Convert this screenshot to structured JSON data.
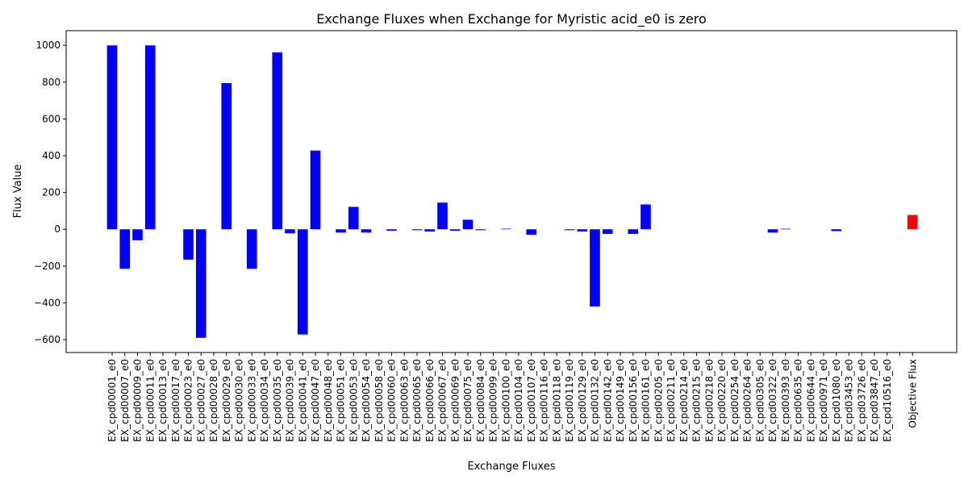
{
  "chart_data": {
    "type": "bar",
    "title": "Exchange Fluxes when Exchange for Myristic acid_e0 is zero",
    "xlabel": "Exchange Fluxes",
    "ylabel": "Flux Value",
    "ylim": [
      -670,
      1080
    ],
    "yticks": [
      -600,
      -400,
      -200,
      0,
      200,
      400,
      600,
      800,
      1000
    ],
    "grid": false,
    "colors": {
      "exchange": "#0000ff",
      "objective": "#ff0000"
    },
    "categories": [
      "EX_cpd00001_e0",
      "EX_cpd00007_e0",
      "EX_cpd00009_e0",
      "EX_cpd00011_e0",
      "EX_cpd00013_e0",
      "EX_cpd00017_e0",
      "EX_cpd00023_e0",
      "EX_cpd00027_e0",
      "EX_cpd00028_e0",
      "EX_cpd00029_e0",
      "EX_cpd00030_e0",
      "EX_cpd00033_e0",
      "EX_cpd00034_e0",
      "EX_cpd00035_e0",
      "EX_cpd00039_e0",
      "EX_cpd00041_e0",
      "EX_cpd00047_e0",
      "EX_cpd00048_e0",
      "EX_cpd00051_e0",
      "EX_cpd00053_e0",
      "EX_cpd00054_e0",
      "EX_cpd00058_e0",
      "EX_cpd00060_e0",
      "EX_cpd00063_e0",
      "EX_cpd00065_e0",
      "EX_cpd00066_e0",
      "EX_cpd00067_e0",
      "EX_cpd00069_e0",
      "EX_cpd00075_e0",
      "EX_cpd00084_e0",
      "EX_cpd00099_e0",
      "EX_cpd00100_e0",
      "EX_cpd00104_e0",
      "EX_cpd00107_e0",
      "EX_cpd00116_e0",
      "EX_cpd00118_e0",
      "EX_cpd00119_e0",
      "EX_cpd00129_e0",
      "EX_cpd00132_e0",
      "EX_cpd00142_e0",
      "EX_cpd00149_e0",
      "EX_cpd00156_e0",
      "EX_cpd00161_e0",
      "EX_cpd00205_e0",
      "EX_cpd00211_e0",
      "EX_cpd00214_e0",
      "EX_cpd00215_e0",
      "EX_cpd00218_e0",
      "EX_cpd00220_e0",
      "EX_cpd00254_e0",
      "EX_cpd00264_e0",
      "EX_cpd00305_e0",
      "EX_cpd00322_e0",
      "EX_cpd00393_e0",
      "EX_cpd00635_e0",
      "EX_cpd00644_e0",
      "EX_cpd00971_e0",
      "EX_cpd01080_e0",
      "EX_cpd03453_e0",
      "EX_cpd03726_e0",
      "EX_cpd03847_e0",
      "EX_cpd10516_e0",
      "",
      "Objective Flux"
    ],
    "values": [
      1000,
      -215,
      -60,
      1000,
      0,
      0,
      -165,
      -590,
      0,
      795,
      0,
      -215,
      0,
      962,
      -22,
      -572,
      428,
      0,
      -18,
      122,
      -18,
      0,
      -8,
      0,
      -5,
      -12,
      145,
      -8,
      52,
      -5,
      0,
      3,
      0,
      -30,
      0,
      0,
      -5,
      -12,
      -420,
      -25,
      0,
      -25,
      135,
      0,
      0,
      0,
      0,
      0,
      0,
      0,
      0,
      0,
      -18,
      3,
      0,
      0,
      0,
      -10,
      0,
      0,
      0,
      0,
      0,
      78
    ]
  }
}
